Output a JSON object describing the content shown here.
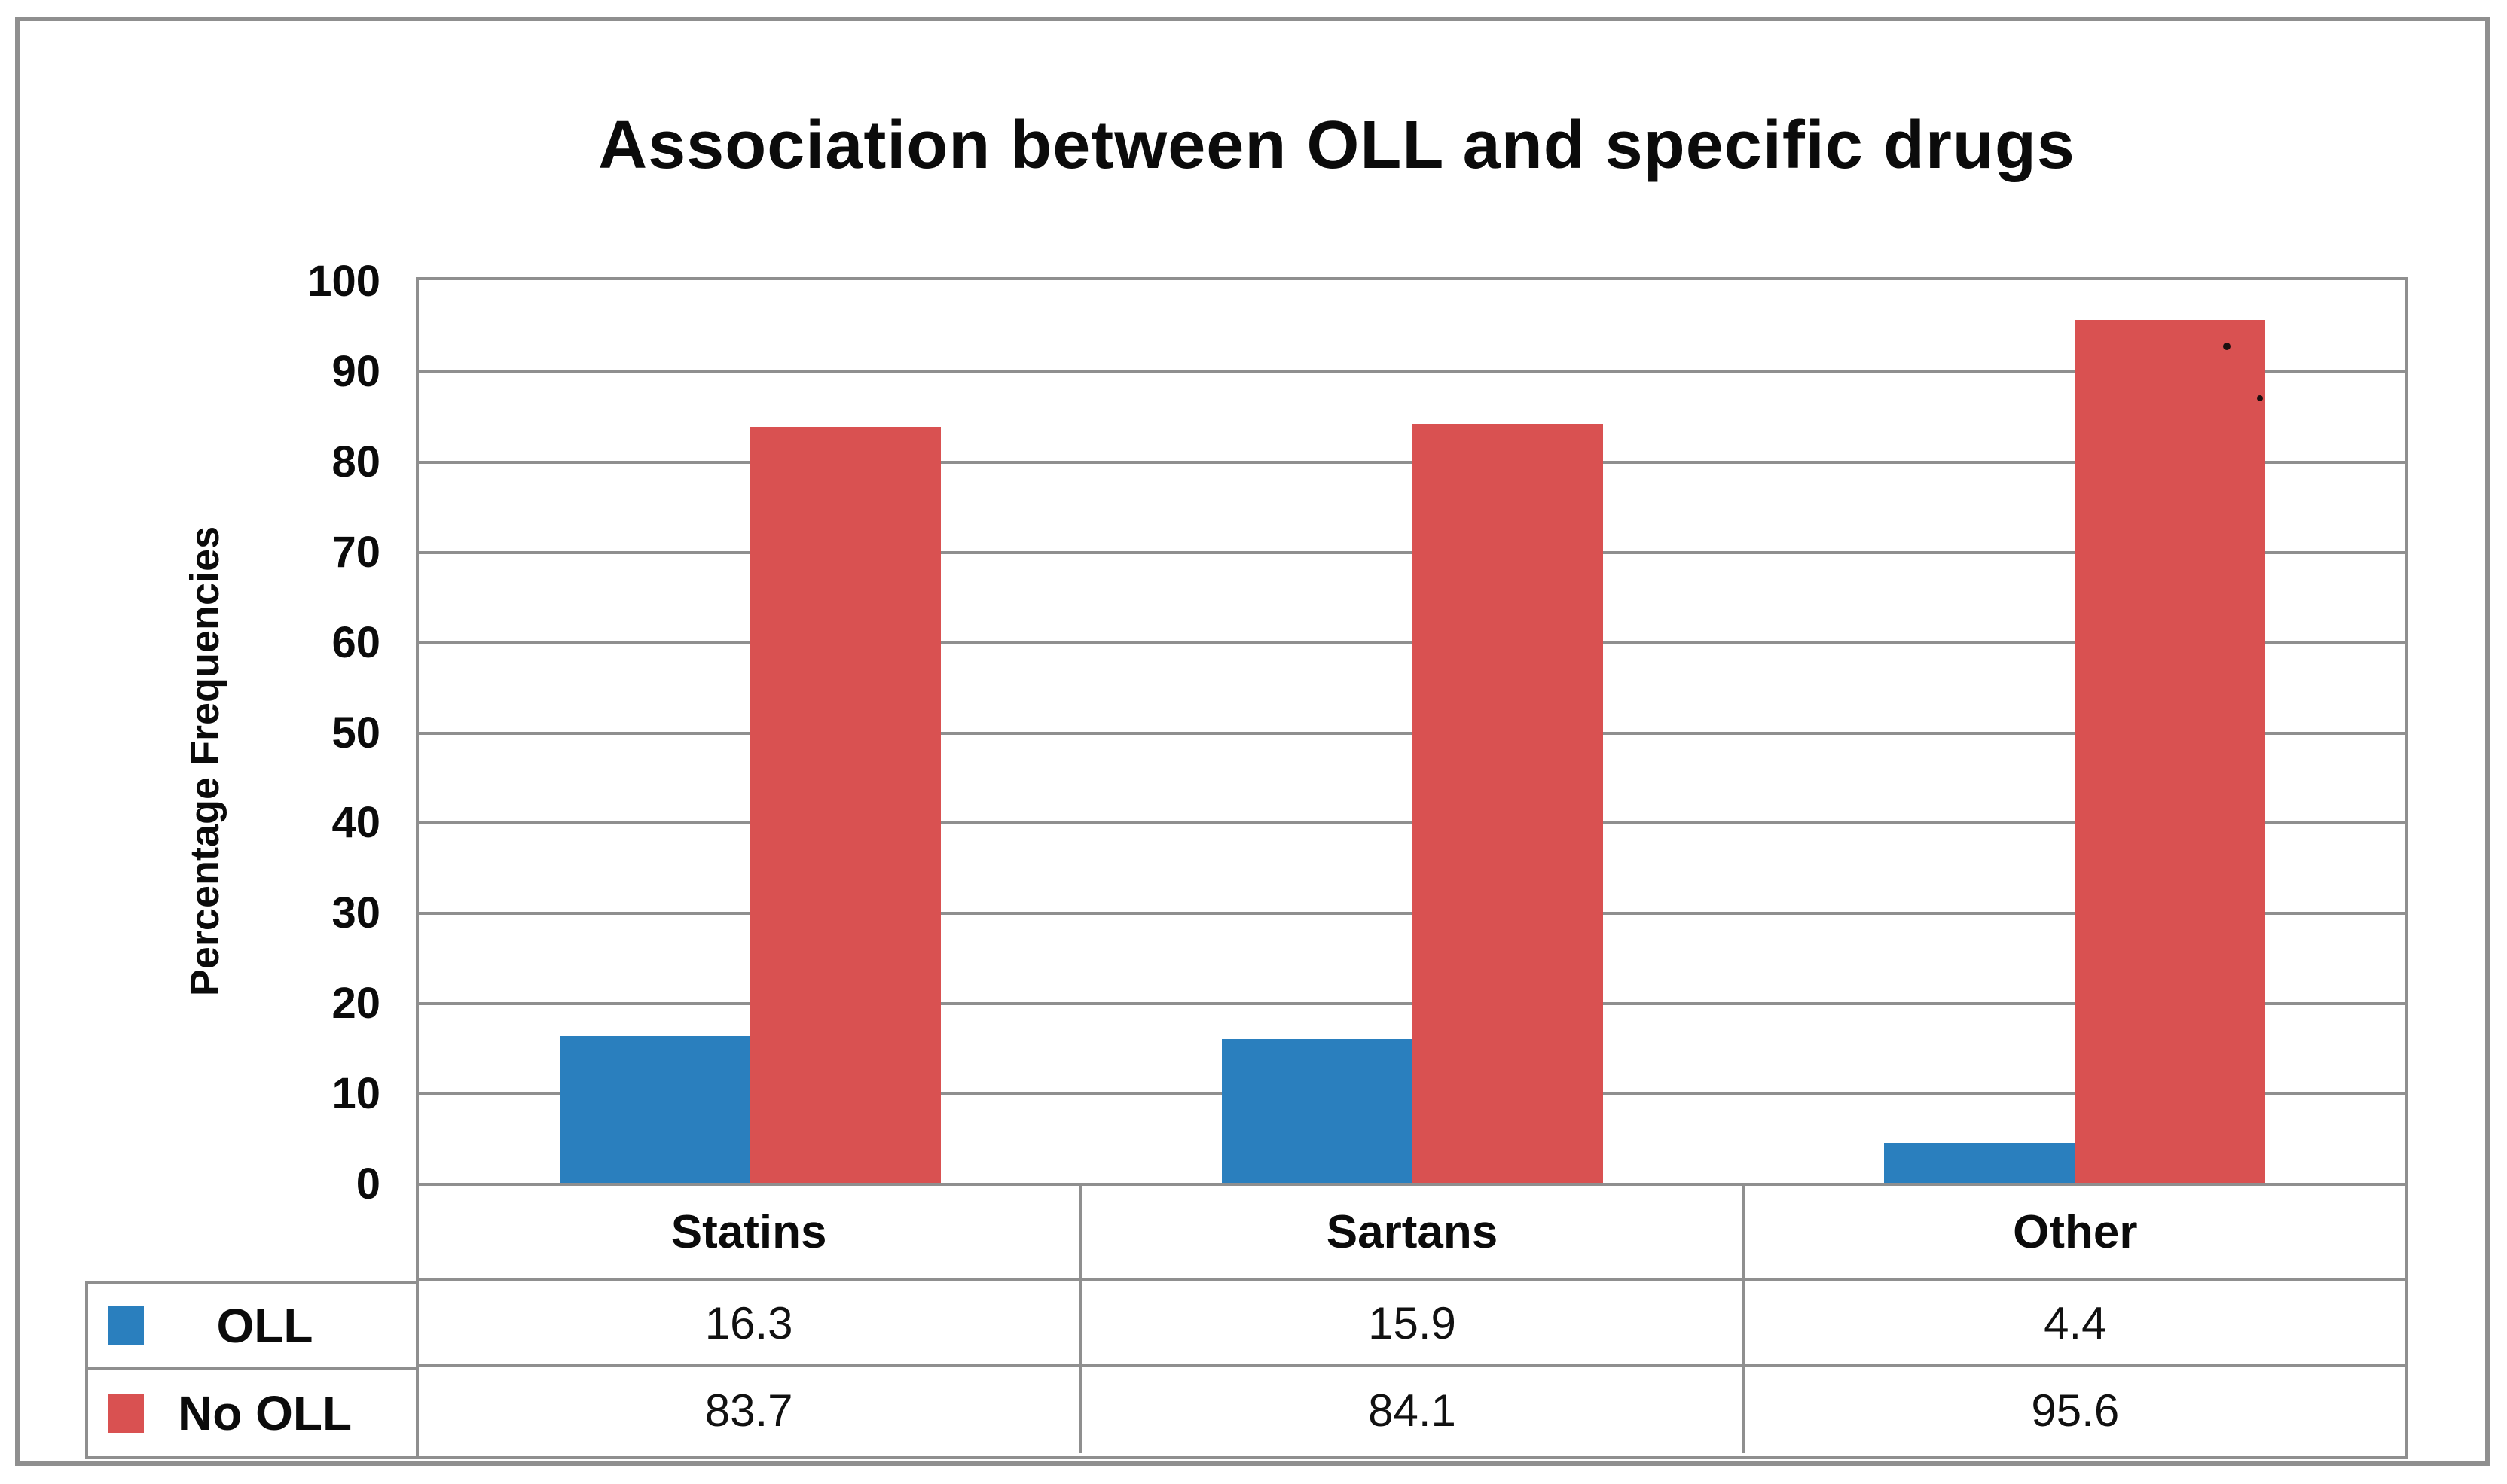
{
  "figure": {
    "title": "Association between OLL and specific drugs",
    "y_axis_label": "Percentage Frequencies"
  },
  "chart_data": {
    "type": "bar",
    "title": "Association between OLL and specific drugs",
    "xlabel": "",
    "ylabel": "Percentage Frequencies",
    "categories": [
      "Statins",
      "Sartans",
      "Other"
    ],
    "series": [
      {
        "name": "OLL",
        "color": "#2a7fbe",
        "values": [
          16.3,
          15.9,
          4.4
        ]
      },
      {
        "name": "No OLL",
        "color": "#d95151",
        "values": [
          83.7,
          84.1,
          95.6
        ]
      }
    ],
    "ylim": [
      0,
      100
    ],
    "yticks": [
      0,
      10,
      20,
      30,
      40,
      50,
      60,
      70,
      80,
      90,
      100
    ],
    "grid": "horizontal-major-only",
    "gridline_color": "#8f8f8f",
    "legend_position": "data-table-left",
    "data_table_shown": true
  }
}
